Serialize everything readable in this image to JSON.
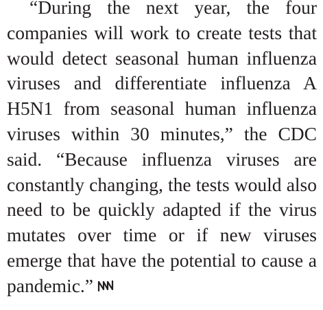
{
  "paragraph": "“During the next year, the four companies will work to create tests that would detect seasonal human influenza viruses and differentiate influenza A H5N1 from seasonal human influenza viruses within 30 minutes,” the CDC said. “Because influenza viruses are constantly changing, the tests would also need to be quickly adapted if the virus mutates over time or if new viruses emerge that have the potential to cause a pandemic.”"
}
